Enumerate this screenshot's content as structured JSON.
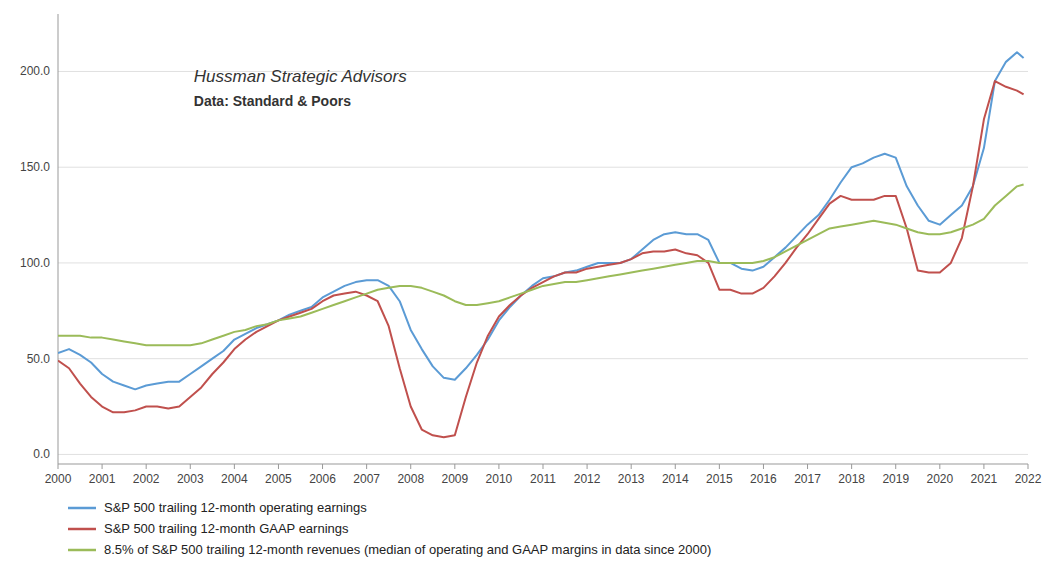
{
  "chart_data": {
    "type": "line",
    "title": "Hussman Strategic Advisors",
    "subtitle": "Data: Standard & Poors",
    "x": [
      2000,
      2000.25,
      2000.5,
      2000.75,
      2001,
      2001.25,
      2001.5,
      2001.75,
      2002,
      2002.25,
      2002.5,
      2002.75,
      2003,
      2003.25,
      2003.5,
      2003.75,
      2004,
      2004.25,
      2004.5,
      2004.75,
      2005,
      2005.25,
      2005.5,
      2005.75,
      2006,
      2006.25,
      2006.5,
      2006.75,
      2007,
      2007.25,
      2007.5,
      2007.75,
      2008,
      2008.25,
      2008.5,
      2008.75,
      2009,
      2009.25,
      2009.5,
      2009.75,
      2010,
      2010.25,
      2010.5,
      2010.75,
      2011,
      2011.25,
      2011.5,
      2011.75,
      2012,
      2012.25,
      2012.5,
      2012.75,
      2013,
      2013.25,
      2013.5,
      2013.75,
      2014,
      2014.25,
      2014.5,
      2014.75,
      2015,
      2015.25,
      2015.5,
      2015.75,
      2016,
      2016.25,
      2016.5,
      2016.75,
      2017,
      2017.25,
      2017.5,
      2017.75,
      2018,
      2018.25,
      2018.5,
      2018.75,
      2019,
      2019.25,
      2019.5,
      2019.75,
      2020,
      2020.25,
      2020.5,
      2020.75,
      2021,
      2021.25,
      2021.5,
      2021.75,
      2021.9
    ],
    "series": [
      {
        "name": "S&P 500 trailing 12-month operating earnings",
        "color": "#5B9BD5",
        "values": [
          53,
          55,
          52,
          48,
          42,
          38,
          36,
          34,
          36,
          37,
          38,
          38,
          42,
          46,
          50,
          54,
          60,
          63,
          66,
          68,
          70,
          73,
          75,
          77,
          82,
          85,
          88,
          90,
          91,
          91,
          88,
          80,
          65,
          55,
          46,
          40,
          39,
          45,
          52,
          60,
          70,
          77,
          83,
          88,
          92,
          93,
          95,
          96,
          98,
          100,
          100,
          100,
          102,
          107,
          112,
          115,
          116,
          115,
          115,
          112,
          100,
          100,
          97,
          96,
          98,
          103,
          108,
          114,
          120,
          125,
          133,
          142,
          150,
          152,
          155,
          157,
          155,
          140,
          130,
          122,
          120,
          125,
          130,
          140,
          160,
          195,
          205,
          210,
          207
        ]
      },
      {
        "name": "S&P 500 trailing 12-month GAAP earnings",
        "color": "#C0504D",
        "values": [
          49,
          45,
          37,
          30,
          25,
          22,
          22,
          23,
          25,
          25,
          24,
          25,
          30,
          35,
          42,
          48,
          55,
          60,
          64,
          67,
          70,
          72,
          74,
          76,
          80,
          83,
          84,
          85,
          83,
          80,
          67,
          45,
          25,
          13,
          10,
          9,
          10,
          30,
          48,
          62,
          72,
          78,
          83,
          87,
          90,
          93,
          95,
          95,
          97,
          98,
          99,
          100,
          102,
          105,
          106,
          106,
          107,
          105,
          104,
          100,
          86,
          86,
          84,
          84,
          87,
          93,
          100,
          108,
          115,
          123,
          131,
          135,
          133,
          133,
          133,
          135,
          135,
          118,
          96,
          95,
          95,
          100,
          113,
          140,
          175,
          195,
          192,
          190,
          188
        ]
      },
      {
        "name": "8.5% of S&P 500 trailing 12-month revenues (median of operating and GAAP margins in data since 2000)",
        "color": "#9BBB59",
        "values": [
          62,
          62,
          62,
          61,
          61,
          60,
          59,
          58,
          57,
          57,
          57,
          57,
          57,
          58,
          60,
          62,
          64,
          65,
          67,
          68,
          70,
          71,
          72,
          74,
          76,
          78,
          80,
          82,
          84,
          86,
          87,
          88,
          88,
          87,
          85,
          83,
          80,
          78,
          78,
          79,
          80,
          82,
          84,
          86,
          88,
          89,
          90,
          90,
          91,
          92,
          93,
          94,
          95,
          96,
          97,
          98,
          99,
          100,
          101,
          101,
          100,
          100,
          100,
          100,
          101,
          103,
          106,
          109,
          112,
          115,
          118,
          119,
          120,
          121,
          122,
          121,
          120,
          118,
          116,
          115,
          115,
          116,
          118,
          120,
          123,
          130,
          135,
          140,
          141
        ]
      }
    ],
    "xlim": [
      2000,
      2022
    ],
    "xticks": [
      2000,
      2001,
      2002,
      2003,
      2004,
      2005,
      2006,
      2007,
      2008,
      2009,
      2010,
      2011,
      2012,
      2013,
      2014,
      2015,
      2016,
      2017,
      2018,
      2019,
      2020,
      2021,
      2022
    ],
    "ylim": [
      -5,
      230
    ],
    "yticks": [
      {
        "value": 0,
        "label": "0.0"
      },
      {
        "value": 50,
        "label": "50.0"
      },
      {
        "value": 100,
        "label": "100.0"
      },
      {
        "value": 150,
        "label": "150.0"
      },
      {
        "value": 200,
        "label": "200.0"
      }
    ],
    "grid": true,
    "legend": "bottom"
  }
}
